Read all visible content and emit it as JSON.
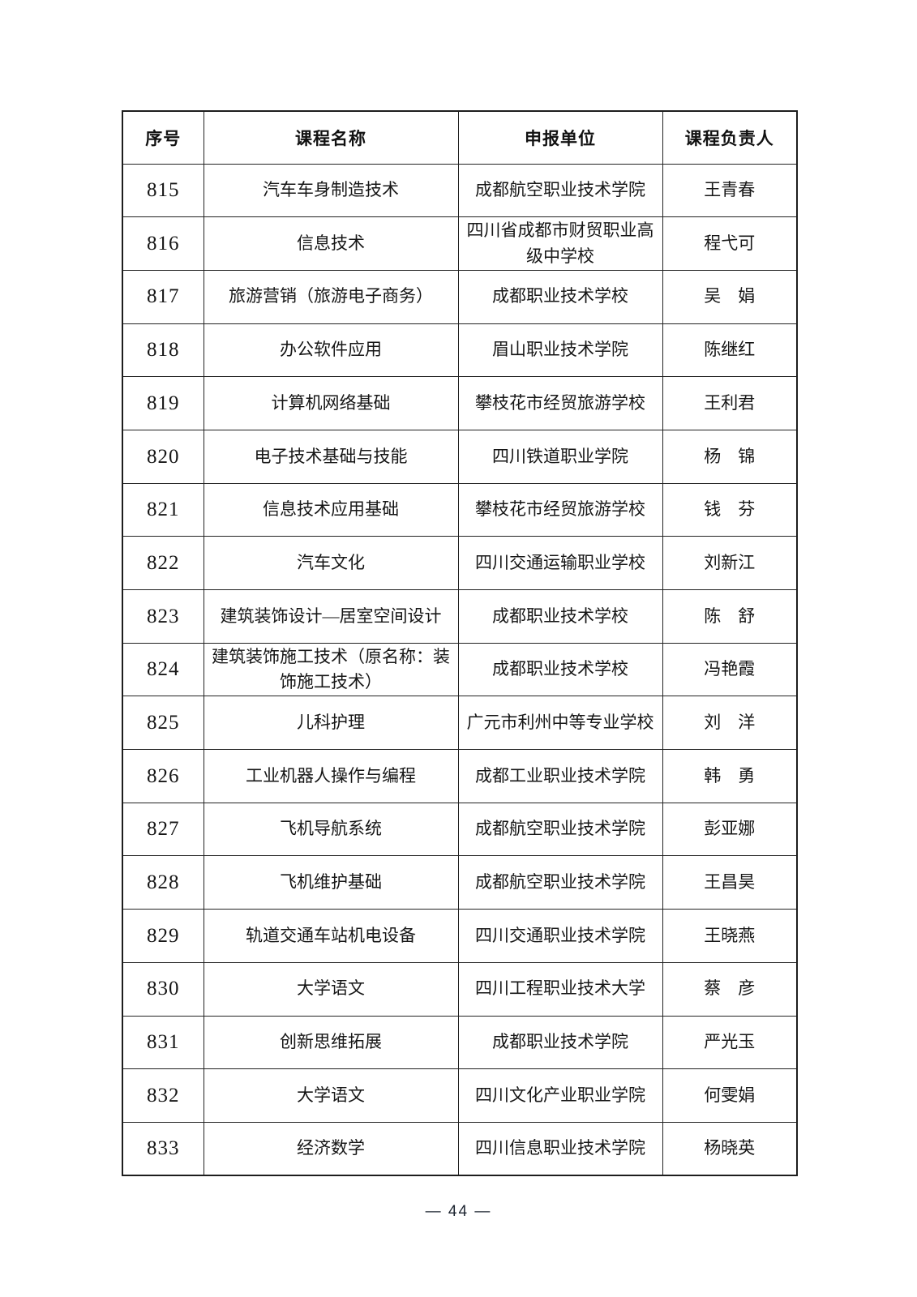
{
  "table": {
    "headers": [
      "序号",
      "课程名称",
      "申报单位",
      "课程负责人"
    ],
    "rows": [
      {
        "no": "815",
        "course": "汽车车身制造技术",
        "unit": "成都航空职业技术学院",
        "leader": "王青春"
      },
      {
        "no": "816",
        "course": "信息技术",
        "unit": "四川省成都市财贸职业高级中学校",
        "leader": "程弋可"
      },
      {
        "no": "817",
        "course": "旅游营销（旅游电子商务）",
        "unit": "成都职业技术学校",
        "leader": "吴　娟"
      },
      {
        "no": "818",
        "course": "办公软件应用",
        "unit": "眉山职业技术学院",
        "leader": "陈继红"
      },
      {
        "no": "819",
        "course": "计算机网络基础",
        "unit": "攀枝花市经贸旅游学校",
        "leader": "王利君"
      },
      {
        "no": "820",
        "course": "电子技术基础与技能",
        "unit": "四川铁道职业学院",
        "leader": "杨　锦"
      },
      {
        "no": "821",
        "course": "信息技术应用基础",
        "unit": "攀枝花市经贸旅游学校",
        "leader": "钱　芬"
      },
      {
        "no": "822",
        "course": "汽车文化",
        "unit": "四川交通运输职业学校",
        "leader": "刘新江"
      },
      {
        "no": "823",
        "course": "建筑装饰设计—居室空间设计",
        "unit": "成都职业技术学校",
        "leader": "陈　舒"
      },
      {
        "no": "824",
        "course": "建筑装饰施工技术（原名称：装饰施工技术）",
        "unit": "成都职业技术学校",
        "leader": "冯艳霞"
      },
      {
        "no": "825",
        "course": "儿科护理",
        "unit": "广元市利州中等专业学校",
        "leader": "刘　洋"
      },
      {
        "no": "826",
        "course": "工业机器人操作与编程",
        "unit": "成都工业职业技术学院",
        "leader": "韩　勇"
      },
      {
        "no": "827",
        "course": "飞机导航系统",
        "unit": "成都航空职业技术学院",
        "leader": "彭亚娜"
      },
      {
        "no": "828",
        "course": "飞机维护基础",
        "unit": "成都航空职业技术学院",
        "leader": "王昌昊"
      },
      {
        "no": "829",
        "course": "轨道交通车站机电设备",
        "unit": "四川交通职业技术学院",
        "leader": "王晓燕"
      },
      {
        "no": "830",
        "course": "大学语文",
        "unit": "四川工程职业技术大学",
        "leader": "蔡　彦"
      },
      {
        "no": "831",
        "course": "创新思维拓展",
        "unit": "成都职业技术学院",
        "leader": "严光玉"
      },
      {
        "no": "832",
        "course": "大学语文",
        "unit": "四川文化产业职业学院",
        "leader": "何雯娟"
      },
      {
        "no": "833",
        "course": "经济数学",
        "unit": "四川信息职业技术学院",
        "leader": "杨晓英"
      }
    ]
  },
  "footer": {
    "page_number": "— 44 —"
  }
}
